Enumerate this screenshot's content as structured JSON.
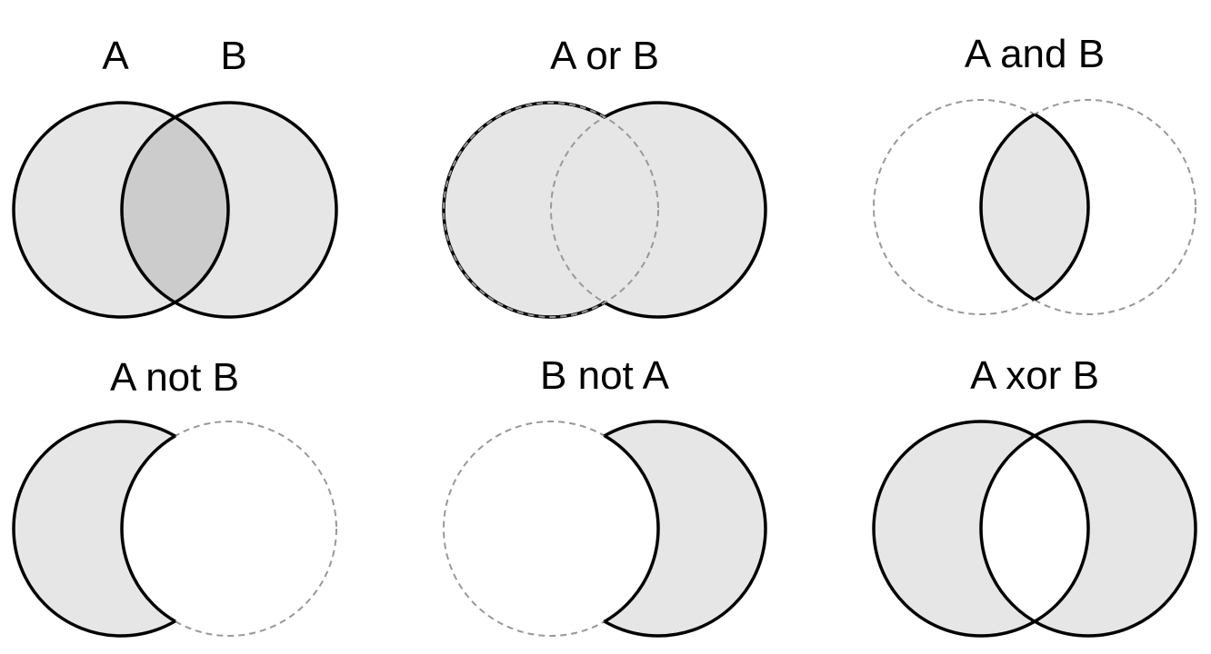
{
  "colors": {
    "fill": "#e6e6e6",
    "overlap_fill": "#cccccc",
    "stroke": "#000000",
    "dashed_stroke": "#999999",
    "background": "#ffffff"
  },
  "panels": [
    {
      "id": "both",
      "labels": [
        "A",
        "B"
      ]
    },
    {
      "id": "or",
      "labels": [
        "A or B"
      ]
    },
    {
      "id": "and",
      "labels": [
        "A and B"
      ]
    },
    {
      "id": "a_not_b",
      "labels": [
        "A not B"
      ]
    },
    {
      "id": "b_not_a",
      "labels": [
        "B not A"
      ]
    },
    {
      "id": "xor",
      "labels": [
        "A xor B"
      ]
    }
  ]
}
